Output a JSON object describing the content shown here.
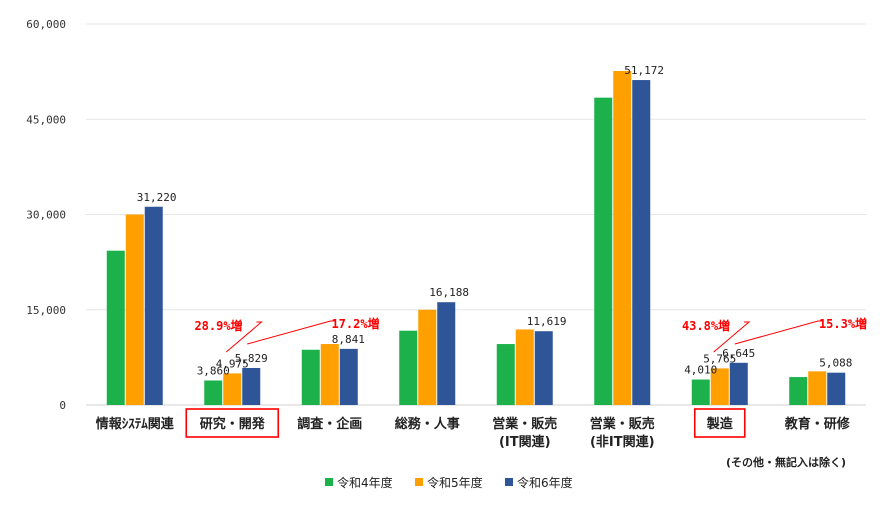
{
  "chart_data": {
    "type": "bar",
    "categories": [
      [
        "情報ｼｽﾃﾑ関連"
      ],
      [
        "研究・開発"
      ],
      [
        "調査・企画"
      ],
      [
        "総務・人事"
      ],
      [
        "営業・販売",
        "(IT関連)"
      ],
      [
        "営業・販売",
        "(非IT関連)"
      ],
      [
        "製造"
      ],
      [
        "教育・研修"
      ]
    ],
    "series": [
      {
        "name": "令和4年度",
        "color": "#1cb14a",
        "values": [
          24300,
          3860,
          8700,
          11700,
          9600,
          48400,
          4010,
          4400
        ]
      },
      {
        "name": "令和5年度",
        "color": "#ff9f00",
        "values": [
          30000,
          4975,
          9600,
          15000,
          11900,
          52600,
          5765,
          5300
        ]
      },
      {
        "name": "令和6年度",
        "color": "#2e5597",
        "values": [
          31220,
          5829,
          8841,
          16188,
          11619,
          51172,
          6645,
          5088
        ]
      }
    ],
    "data_labels": [
      [
        "31,220"
      ],
      [
        "3,860",
        "4,975",
        "5,829"
      ],
      [
        "8,841"
      ],
      [
        "16,188"
      ],
      [
        "11,619"
      ],
      [
        "51,172"
      ],
      [
        "4,010",
        "5,765",
        "6,645"
      ],
      [
        "5,088"
      ]
    ],
    "data_label_series": [
      [
        2
      ],
      [
        0,
        1,
        2
      ],
      [
        2
      ],
      [
        2
      ],
      [
        2
      ],
      [
        2
      ],
      [
        0,
        1,
        2
      ],
      [
        2
      ]
    ],
    "y_ticks": [
      "0",
      "15,000",
      "30,000",
      "45,000",
      "60,000"
    ],
    "y_tick_values": [
      0,
      15000,
      30000,
      45000,
      60000
    ],
    "ylim": [
      0,
      60000
    ],
    "highlighted_categories": [
      1,
      6
    ],
    "annotations": [
      {
        "text": "28.9%増",
        "category": 1
      },
      {
        "text": "17.2%増",
        "category": 1
      },
      {
        "text": "43.8%増",
        "category": 6
      },
      {
        "text": "15.3%増",
        "category": 6
      }
    ],
    "note": "(その他・無記入は除く)",
    "legend_position": "bottom",
    "grid": true,
    "title": "",
    "xlabel": "",
    "ylabel": ""
  }
}
